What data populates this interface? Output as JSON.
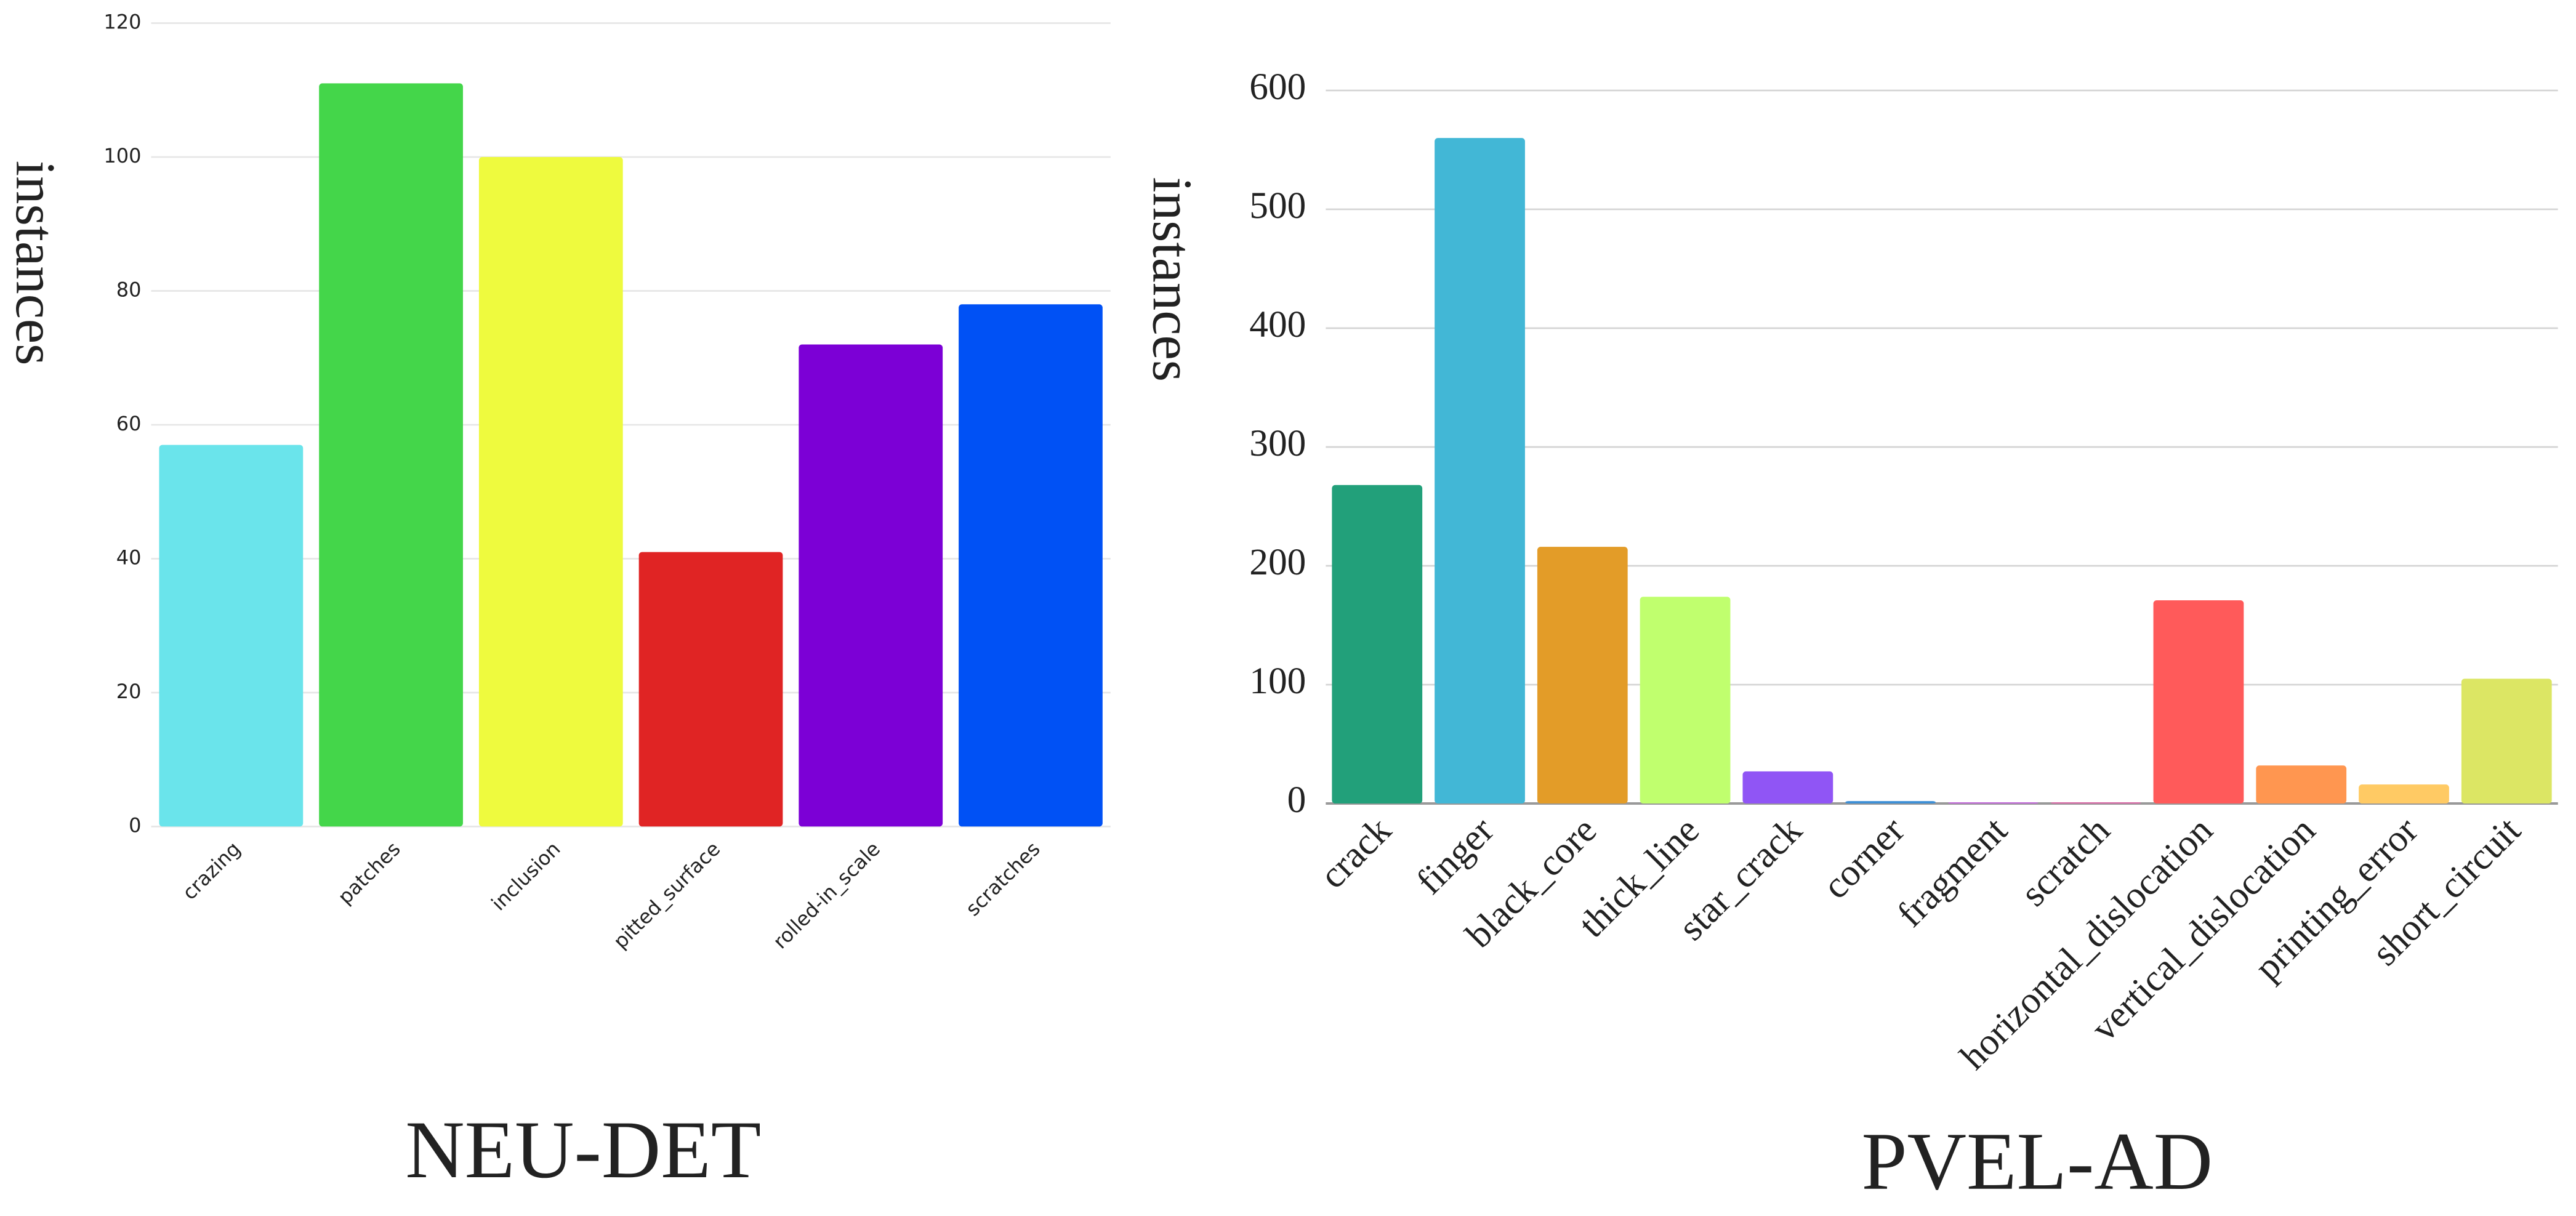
{
  "chart_data": [
    {
      "type": "bar",
      "title": "NEU-DET",
      "ylabel": "instances",
      "categories": [
        "crazing",
        "patches",
        "inclusion",
        "pitted_surface",
        "rolled-in_scale",
        "scratches"
      ],
      "values": [
        57,
        111,
        100,
        41,
        72,
        78
      ],
      "colors": [
        "#6ae4eb",
        "#44d64a",
        "#eefa3e",
        "#e02424",
        "#7c00d6",
        "#0051f5"
      ],
      "ylim": [
        0,
        120
      ],
      "yticks": [
        0,
        20,
        40,
        60,
        80,
        100,
        120
      ],
      "grid": true
    },
    {
      "type": "bar",
      "title": "PVEL-AD",
      "ylabel": "instances",
      "categories": [
        "crack",
        "finger",
        "black_core",
        "thick_line",
        "star_crack",
        "corner",
        "fragment",
        "scratch",
        "horizontal_dislocation",
        "vertical_dislocation",
        "printing_error",
        "short_circuit"
      ],
      "values": [
        268,
        560,
        216,
        174,
        27,
        2,
        1,
        1,
        171,
        32,
        16,
        105
      ],
      "colors": [
        "#22a07a",
        "#42b7d6",
        "#e39c28",
        "#c0ff6e",
        "#9055f5",
        "#3d8fd6",
        "#c86be0",
        "#e06bab",
        "#ff5a5a",
        "#ff9650",
        "#ffca64",
        "#dce664"
      ],
      "ylim": [
        0,
        600
      ],
      "yticks": [
        0,
        100,
        200,
        300,
        400,
        500,
        600
      ],
      "grid": true
    }
  ]
}
